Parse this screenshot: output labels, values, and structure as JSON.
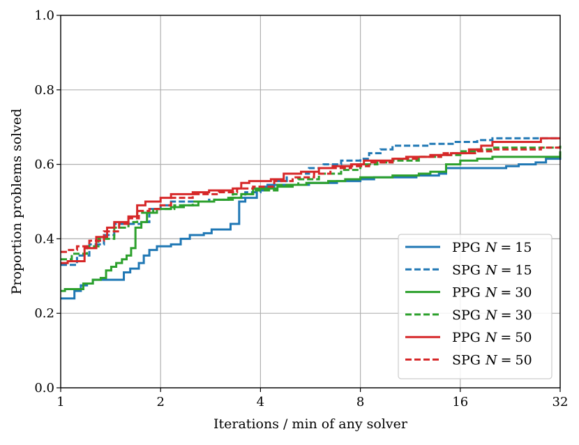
{
  "chart_data": {
    "type": "line",
    "title": "",
    "xlabel": "Iterations / min of any solver",
    "ylabel": "Proportion problems solved",
    "x_scale": "log2",
    "xlim": [
      1,
      32
    ],
    "ylim": [
      0.0,
      1.0
    ],
    "x_ticks": [
      1,
      2,
      4,
      8,
      16,
      32
    ],
    "x_tick_labels": [
      "1",
      "2",
      "4",
      "8",
      "16",
      "32"
    ],
    "y_ticks": [
      0.0,
      0.2,
      0.4,
      0.6,
      0.8,
      1.0
    ],
    "y_tick_labels": [
      "0.0",
      "0.2",
      "0.4",
      "0.6",
      "0.8",
      "1.0"
    ],
    "grid": true,
    "legend_position": "lower-right",
    "series": [
      {
        "name": "PPG N = 15",
        "legend_prefix": "PPG",
        "legend_n": "15",
        "color": "#1f77b4",
        "dash": "solid",
        "points": [
          [
            1,
            0.24
          ],
          [
            1.1,
            0.26
          ],
          [
            1.15,
            0.275
          ],
          [
            1.2,
            0.28
          ],
          [
            1.25,
            0.29
          ],
          [
            1.5,
            0.29
          ],
          [
            1.55,
            0.31
          ],
          [
            1.62,
            0.32
          ],
          [
            1.72,
            0.335
          ],
          [
            1.78,
            0.355
          ],
          [
            1.85,
            0.37
          ],
          [
            1.95,
            0.38
          ],
          [
            2.15,
            0.385
          ],
          [
            2.3,
            0.4
          ],
          [
            2.45,
            0.41
          ],
          [
            2.7,
            0.415
          ],
          [
            2.85,
            0.425
          ],
          [
            3.1,
            0.425
          ],
          [
            3.25,
            0.44
          ],
          [
            3.45,
            0.5
          ],
          [
            3.6,
            0.51
          ],
          [
            3.9,
            0.53
          ],
          [
            4.2,
            0.545
          ],
          [
            5.0,
            0.545
          ],
          [
            5.6,
            0.55
          ],
          [
            6.2,
            0.55
          ],
          [
            6.8,
            0.555
          ],
          [
            8.0,
            0.56
          ],
          [
            8.8,
            0.565
          ],
          [
            11.0,
            0.565
          ],
          [
            11.8,
            0.57
          ],
          [
            13.8,
            0.575
          ],
          [
            14.5,
            0.59
          ],
          [
            20.0,
            0.59
          ],
          [
            22.0,
            0.595
          ],
          [
            24.0,
            0.6
          ],
          [
            27.0,
            0.605
          ],
          [
            29.0,
            0.615
          ],
          [
            32,
            0.625
          ]
        ]
      },
      {
        "name": "SPG N = 15",
        "legend_prefix": "SPG",
        "legend_n": "15",
        "color": "#1f77b4",
        "dash": "dashed",
        "points": [
          [
            1,
            0.33
          ],
          [
            1.05,
            0.33
          ],
          [
            1.12,
            0.355
          ],
          [
            1.22,
            0.385
          ],
          [
            1.35,
            0.41
          ],
          [
            1.45,
            0.44
          ],
          [
            1.75,
            0.445
          ],
          [
            1.85,
            0.48
          ],
          [
            2.0,
            0.49
          ],
          [
            2.15,
            0.5
          ],
          [
            2.6,
            0.5
          ],
          [
            2.8,
            0.505
          ],
          [
            3.2,
            0.51
          ],
          [
            3.6,
            0.525
          ],
          [
            4.0,
            0.54
          ],
          [
            4.4,
            0.555
          ],
          [
            4.8,
            0.575
          ],
          [
            5.6,
            0.59
          ],
          [
            6.2,
            0.6
          ],
          [
            7.0,
            0.61
          ],
          [
            8.0,
            0.615
          ],
          [
            8.5,
            0.63
          ],
          [
            9.2,
            0.64
          ],
          [
            10.0,
            0.65
          ],
          [
            12.0,
            0.65
          ],
          [
            13.0,
            0.655
          ],
          [
            15.5,
            0.66
          ],
          [
            18.0,
            0.665
          ],
          [
            20.0,
            0.67
          ],
          [
            32,
            0.67
          ]
        ]
      },
      {
        "name": "PPG N = 30",
        "legend_prefix": "PPG",
        "legend_n": "30",
        "color": "#2ca02c",
        "dash": "solid",
        "points": [
          [
            1,
            0.26
          ],
          [
            1.03,
            0.265
          ],
          [
            1.12,
            0.265
          ],
          [
            1.17,
            0.28
          ],
          [
            1.25,
            0.29
          ],
          [
            1.32,
            0.295
          ],
          [
            1.37,
            0.315
          ],
          [
            1.42,
            0.325
          ],
          [
            1.47,
            0.335
          ],
          [
            1.53,
            0.345
          ],
          [
            1.58,
            0.355
          ],
          [
            1.63,
            0.375
          ],
          [
            1.68,
            0.43
          ],
          [
            1.75,
            0.445
          ],
          [
            1.82,
            0.47
          ],
          [
            1.95,
            0.48
          ],
          [
            2.15,
            0.485
          ],
          [
            2.35,
            0.49
          ],
          [
            2.6,
            0.5
          ],
          [
            2.9,
            0.505
          ],
          [
            3.2,
            0.51
          ],
          [
            3.5,
            0.52
          ],
          [
            3.8,
            0.535
          ],
          [
            4.5,
            0.54
          ],
          [
            5.0,
            0.545
          ],
          [
            5.5,
            0.55
          ],
          [
            6.4,
            0.555
          ],
          [
            7.2,
            0.56
          ],
          [
            8.0,
            0.565
          ],
          [
            10.0,
            0.57
          ],
          [
            12.0,
            0.575
          ],
          [
            13.0,
            0.58
          ],
          [
            14.5,
            0.6
          ],
          [
            16.0,
            0.61
          ],
          [
            18.0,
            0.615
          ],
          [
            20.0,
            0.62
          ],
          [
            28.0,
            0.62
          ],
          [
            32,
            0.635
          ]
        ]
      },
      {
        "name": "SPG N = 30",
        "legend_prefix": "SPG",
        "legend_n": "30",
        "color": "#2ca02c",
        "dash": "dashed",
        "points": [
          [
            1,
            0.345
          ],
          [
            1.08,
            0.36
          ],
          [
            1.2,
            0.38
          ],
          [
            1.3,
            0.4
          ],
          [
            1.45,
            0.43
          ],
          [
            1.6,
            0.445
          ],
          [
            1.7,
            0.47
          ],
          [
            1.9,
            0.48
          ],
          [
            2.2,
            0.49
          ],
          [
            2.5,
            0.5
          ],
          [
            2.9,
            0.505
          ],
          [
            3.3,
            0.52
          ],
          [
            3.8,
            0.53
          ],
          [
            4.5,
            0.545
          ],
          [
            5.2,
            0.56
          ],
          [
            6.0,
            0.575
          ],
          [
            7.0,
            0.585
          ],
          [
            8.0,
            0.6
          ],
          [
            9.0,
            0.605
          ],
          [
            10.0,
            0.61
          ],
          [
            12.0,
            0.62
          ],
          [
            14.0,
            0.625
          ],
          [
            16.0,
            0.635
          ],
          [
            18.0,
            0.64
          ],
          [
            20.0,
            0.645
          ],
          [
            32,
            0.65
          ]
        ]
      },
      {
        "name": "PPG N = 50",
        "legend_prefix": "PPG",
        "legend_n": "50",
        "color": "#d62728",
        "dash": "solid",
        "points": [
          [
            1,
            0.335
          ],
          [
            1.05,
            0.34
          ],
          [
            1.12,
            0.34
          ],
          [
            1.18,
            0.375
          ],
          [
            1.28,
            0.405
          ],
          [
            1.38,
            0.43
          ],
          [
            1.45,
            0.445
          ],
          [
            1.6,
            0.46
          ],
          [
            1.7,
            0.49
          ],
          [
            1.8,
            0.5
          ],
          [
            2.0,
            0.51
          ],
          [
            2.15,
            0.52
          ],
          [
            2.5,
            0.525
          ],
          [
            2.8,
            0.53
          ],
          [
            3.3,
            0.535
          ],
          [
            3.5,
            0.55
          ],
          [
            3.7,
            0.555
          ],
          [
            4.3,
            0.56
          ],
          [
            4.7,
            0.575
          ],
          [
            5.3,
            0.58
          ],
          [
            6.0,
            0.59
          ],
          [
            6.6,
            0.595
          ],
          [
            7.5,
            0.6
          ],
          [
            8.2,
            0.61
          ],
          [
            9.0,
            0.61
          ],
          [
            10.0,
            0.615
          ],
          [
            11.0,
            0.62
          ],
          [
            13.0,
            0.625
          ],
          [
            15.0,
            0.63
          ],
          [
            17.0,
            0.64
          ],
          [
            18.5,
            0.65
          ],
          [
            20.0,
            0.66
          ],
          [
            26.0,
            0.66
          ],
          [
            28.0,
            0.67
          ],
          [
            32,
            0.67
          ]
        ]
      },
      {
        "name": "SPG N = 50",
        "legend_prefix": "SPG",
        "legend_n": "50",
        "color": "#d62728",
        "dash": "dashed",
        "points": [
          [
            1,
            0.365
          ],
          [
            1.05,
            0.37
          ],
          [
            1.12,
            0.38
          ],
          [
            1.22,
            0.395
          ],
          [
            1.35,
            0.42
          ],
          [
            1.5,
            0.44
          ],
          [
            1.6,
            0.455
          ],
          [
            1.72,
            0.475
          ],
          [
            1.85,
            0.48
          ],
          [
            2.0,
            0.49
          ],
          [
            2.15,
            0.51
          ],
          [
            2.5,
            0.52
          ],
          [
            3.0,
            0.525
          ],
          [
            3.4,
            0.535
          ],
          [
            3.8,
            0.54
          ],
          [
            4.4,
            0.555
          ],
          [
            5.0,
            0.565
          ],
          [
            5.8,
            0.575
          ],
          [
            6.5,
            0.59
          ],
          [
            7.5,
            0.595
          ],
          [
            8.5,
            0.605
          ],
          [
            10.0,
            0.615
          ],
          [
            12.0,
            0.62
          ],
          [
            14.0,
            0.63
          ],
          [
            16.0,
            0.63
          ],
          [
            18.0,
            0.635
          ],
          [
            20.0,
            0.64
          ],
          [
            24.0,
            0.64
          ],
          [
            28.0,
            0.645
          ],
          [
            32,
            0.645
          ]
        ]
      }
    ]
  }
}
